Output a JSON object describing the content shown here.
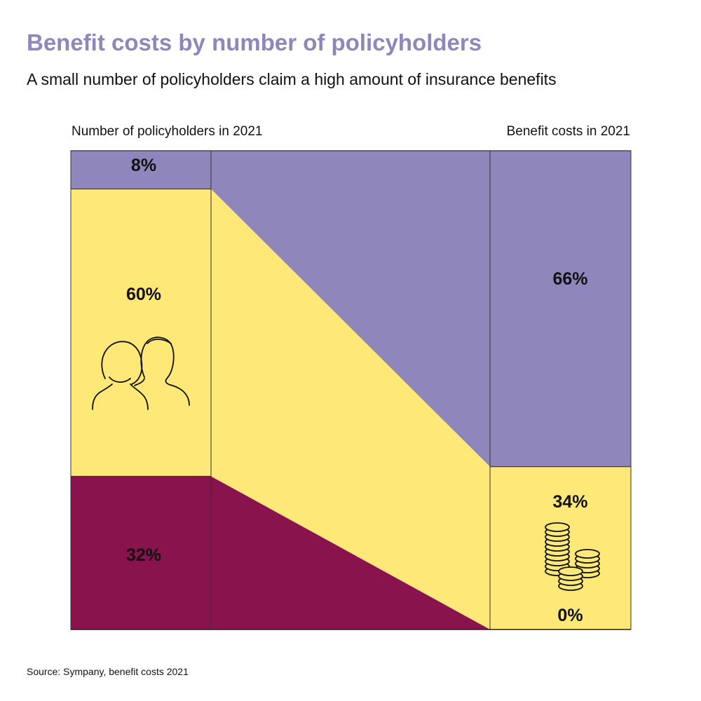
{
  "header": {
    "title": "Benefit costs by number of policyholders",
    "subtitle": "A small number of policyholders claim a high amount of insurance benefits"
  },
  "chart_data": {
    "type": "bar",
    "chart_kind": "stacked-flow",
    "column_labels": [
      "Number of policyholders in 2021",
      "Benefit costs in 2021"
    ],
    "segments": [
      {
        "policyholders_pct": 8,
        "benefit_costs_pct": 66,
        "color": "#8f86bb",
        "left_label": "8%",
        "right_label": "66%"
      },
      {
        "policyholders_pct": 60,
        "benefit_costs_pct": 34,
        "color": "#fde878",
        "left_label": "60%",
        "right_label": "34%"
      },
      {
        "policyholders_pct": 32,
        "benefit_costs_pct": 0,
        "color": "#88134d",
        "left_label": "32%",
        "right_label": "0%"
      }
    ],
    "icons": {
      "left": "people-icon",
      "right": "coins-icon"
    },
    "ylim": [
      0,
      100
    ]
  },
  "footer": {
    "source": "Source: Sympany, benefit costs 2021"
  }
}
